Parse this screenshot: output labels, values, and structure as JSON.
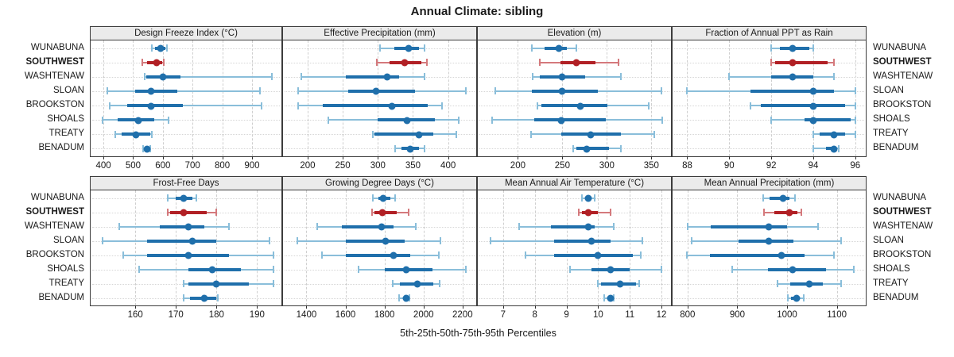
{
  "title": "Annual Climate: sibling",
  "footer": "5th-25th-50th-75th-95th Percentiles",
  "rows": [
    "WUNABUNA",
    "SOUTHWEST",
    "WASHTENAW",
    "SLOAN",
    "BROOKSTON",
    "SHOALS",
    "TREATY",
    "BENADUM"
  ],
  "highlight_row": "SOUTHWEST",
  "colors": {
    "blue": "#1f6fab",
    "blue_light": "#8abeda",
    "red": "#b12025",
    "red_light": "#d4797c",
    "header_bg": "#ebebeb",
    "border": "#3c3c3c",
    "grid": "#cfcfcf"
  },
  "chart_data": {
    "type": "dotplot-trellis",
    "note": "5th-25th-50th-75th-95th percentile whisker dot plots, median dot; SOUTHWEST highlighted red",
    "percentile_labels": [
      "5th",
      "25th",
      "50th",
      "75th",
      "95th"
    ],
    "panels": [
      {
        "title": "Design Freeze Index (°C)",
        "grid_row": 0,
        "grid_col": 0,
        "ticks": [
          400,
          500,
          600,
          700,
          800,
          900
        ],
        "xlim": [
          357,
          999
        ],
        "values": {
          "WUNABUNA": [
            562,
            573,
            592,
            608,
            615
          ],
          "SOUTHWEST": [
            530,
            548,
            580,
            598,
            603
          ],
          "WASHTENAW": [
            538,
            544,
            600,
            660,
            968
          ],
          "SLOAN": [
            413,
            508,
            560,
            648,
            928
          ],
          "BROOKSTON": [
            422,
            480,
            560,
            668,
            932
          ],
          "SHOALS": [
            397,
            447,
            518,
            570,
            620
          ],
          "TREATY": [
            439,
            462,
            510,
            558,
            562
          ],
          "BENADUM": [
            533,
            539,
            546,
            553,
            557
          ]
        }
      },
      {
        "title": "Effective Precipitation (mm)",
        "grid_row": 0,
        "grid_col": 1,
        "ticks": [
          200,
          250,
          300,
          350,
          400
        ],
        "xlim": [
          165,
          440
        ],
        "values": {
          "WUNABUNA": [
            303,
            323,
            344,
            358,
            367
          ],
          "SOUTHWEST": [
            299,
            317,
            338,
            362,
            370
          ],
          "WASHTENAW": [
            191,
            254,
            313,
            330,
            366
          ],
          "SLOAN": [
            186,
            258,
            297,
            353,
            425
          ],
          "BROOKSTON": [
            186,
            222,
            320,
            371,
            391
          ],
          "SHOALS": [
            230,
            300,
            342,
            381,
            415
          ],
          "TREATY": [
            293,
            295,
            358,
            379,
            412
          ],
          "BENADUM": [
            325,
            334,
            346,
            358,
            366
          ]
        }
      },
      {
        "title": "Elevation (m)",
        "grid_row": 0,
        "grid_col": 2,
        "ticks": [
          200,
          250,
          300,
          350
        ],
        "xlim": [
          155,
          372
        ],
        "values": {
          "WUNABUNA": [
            216,
            230,
            246,
            255,
            266
          ],
          "SOUTHWEST": [
            225,
            248,
            266,
            287,
            313
          ],
          "WASHTENAW": [
            217,
            225,
            250,
            276,
            316
          ],
          "SLOAN": [
            175,
            216,
            250,
            290,
            361
          ],
          "BROOKSTON": [
            222,
            226,
            270,
            301,
            347
          ],
          "SHOALS": [
            171,
            218,
            249,
            299,
            362
          ],
          "TREATY": [
            215,
            249,
            282,
            316,
            353
          ],
          "BENADUM": [
            262,
            266,
            277,
            302,
            316
          ]
        }
      },
      {
        "title": "Fraction of Annual PPT as Rain",
        "grid_row": 0,
        "grid_col": 3,
        "ticks": [
          88,
          90,
          92,
          94,
          96
        ],
        "xlim": [
          87.3,
          96.5
        ],
        "values": {
          "WUNABUNA": [
            92,
            92.4,
            93,
            93.8,
            94
          ],
          "SOUTHWEST": [
            92,
            92.2,
            93,
            94.7,
            95
          ],
          "WASHTENAW": [
            90,
            92,
            93,
            94,
            95
          ],
          "SLOAN": [
            88,
            91,
            94,
            95,
            96
          ],
          "BROOKSTON": [
            91,
            91.5,
            94,
            95.5,
            96
          ],
          "SHOALS": [
            92,
            93.6,
            94,
            95.8,
            96
          ],
          "TREATY": [
            94,
            94.3,
            95,
            95.5,
            96
          ],
          "BENADUM": [
            94,
            94.6,
            95,
            95.1,
            95.2
          ]
        }
      },
      {
        "title": "Frost-Free Days",
        "grid_row": 1,
        "grid_col": 0,
        "ticks": [
          160,
          170,
          180,
          190
        ],
        "xlim": [
          149,
          196
        ],
        "values": {
          "WUNABUNA": [
            168,
            170,
            172,
            174,
            175
          ],
          "SOUTHWEST": [
            168,
            168.5,
            172,
            177.5,
            180
          ],
          "WASHTENAW": [
            156,
            166,
            173,
            177,
            183
          ],
          "SLOAN": [
            152,
            163,
            174,
            180,
            193
          ],
          "BROOKSTON": [
            157,
            163,
            173,
            183,
            194
          ],
          "SHOALS": [
            161,
            173,
            179,
            186,
            194
          ],
          "TREATY": [
            172,
            173,
            180,
            188,
            194
          ],
          "BENADUM": [
            172,
            173.5,
            177,
            180,
            180.3
          ]
        }
      },
      {
        "title": "Growing Degree Days (°C)",
        "grid_row": 1,
        "grid_col": 1,
        "ticks": [
          1400,
          1600,
          1800,
          2000,
          2200
        ],
        "xlim": [
          1280,
          2270
        ],
        "values": {
          "WUNABUNA": [
            1740,
            1770,
            1795,
            1830,
            1855
          ],
          "SOUTHWEST": [
            1735,
            1748,
            1790,
            1862,
            1925
          ],
          "WASHTENAW": [
            1455,
            1580,
            1785,
            1845,
            1960
          ],
          "SLOAN": [
            1355,
            1600,
            1805,
            1903,
            2085
          ],
          "BROOKSTON": [
            1480,
            1600,
            1848,
            1930,
            2080
          ],
          "SHOALS": [
            1665,
            1800,
            1910,
            2045,
            2215
          ],
          "TREATY": [
            1843,
            1880,
            1967,
            2050,
            2082
          ],
          "BENADUM": [
            1875,
            1895,
            1910,
            1921,
            1926
          ]
        }
      },
      {
        "title": "Mean Annual Air Temperature (°C)",
        "grid_row": 1,
        "grid_col": 2,
        "ticks": [
          7,
          8,
          9,
          10,
          11,
          12
        ],
        "xlim": [
          6.2,
          12.3
        ],
        "values": {
          "WUNABUNA": [
            9.5,
            9.6,
            9.7,
            9.8,
            9.9
          ],
          "SOUTHWEST": [
            9.4,
            9.5,
            9.7,
            10.0,
            10.4
          ],
          "WASHTENAW": [
            7.5,
            8.5,
            9.7,
            9.9,
            10.5
          ],
          "SLOAN": [
            6.6,
            8.6,
            9.8,
            10.4,
            11.4
          ],
          "BROOKSTON": [
            7.7,
            8.6,
            10.0,
            11.1,
            11.35
          ],
          "SHOALS": [
            9.1,
            9.8,
            10.4,
            11.0,
            12.0
          ],
          "TREATY": [
            10.0,
            10.1,
            10.7,
            11.2,
            11.3
          ],
          "BENADUM": [
            10.2,
            10.3,
            10.4,
            10.45,
            10.5
          ]
        }
      },
      {
        "title": "Mean Annual Precipitation (mm)",
        "grid_row": 1,
        "grid_col": 3,
        "ticks": [
          800,
          900,
          1000,
          1100
        ],
        "xlim": [
          770,
          1158
        ],
        "values": {
          "WUNABUNA": [
            952,
            965,
            992,
            1005,
            1016
          ],
          "SOUTHWEST": [
            953,
            975,
            1004,
            1020,
            1029
          ],
          "WASHTENAW": [
            800,
            846,
            963,
            1000,
            1062
          ],
          "SLOAN": [
            809,
            903,
            963,
            1013,
            1108
          ],
          "BROOKSTON": [
            798,
            845,
            989,
            1035,
            1094
          ],
          "SHOALS": [
            890,
            962,
            1011,
            1078,
            1134
          ],
          "TREATY": [
            981,
            1006,
            1044,
            1071,
            1108
          ],
          "BENADUM": [
            1001,
            1008,
            1019,
            1026,
            1033
          ]
        }
      }
    ]
  }
}
